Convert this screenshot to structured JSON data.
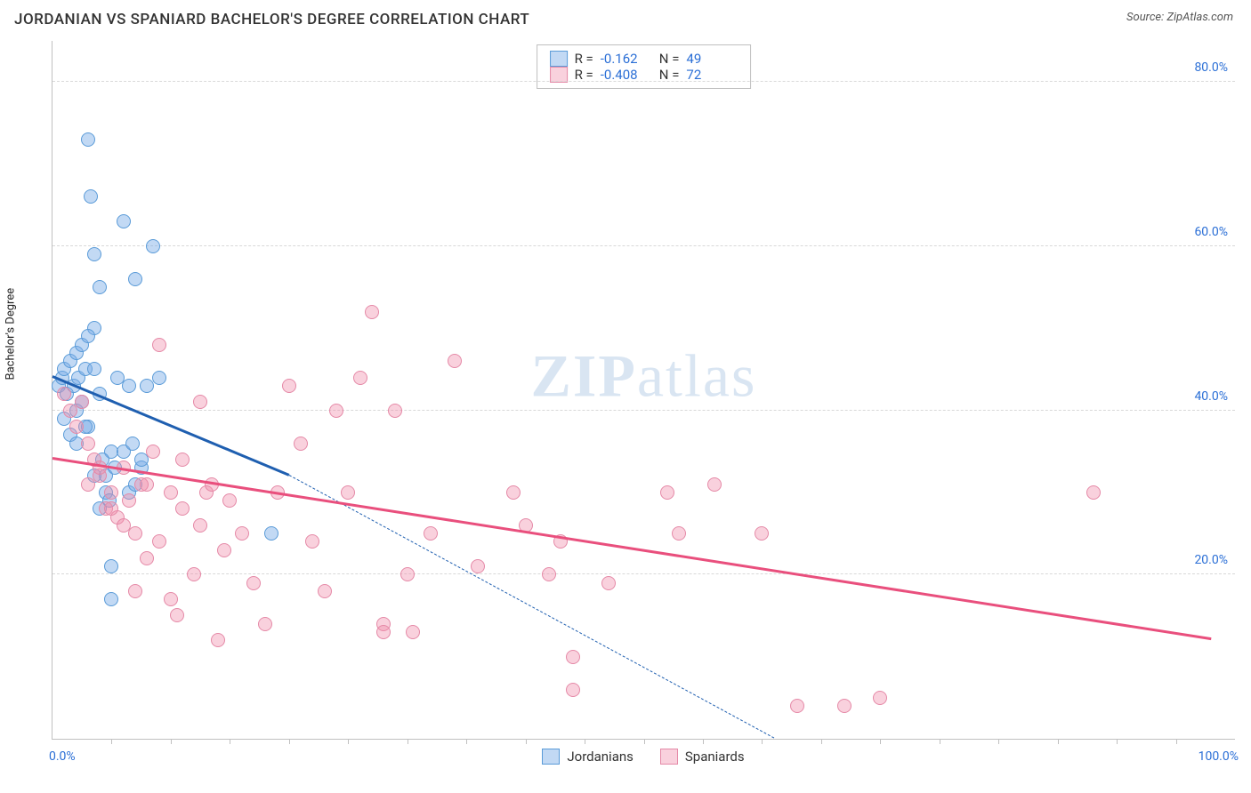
{
  "title": "JORDANIAN VS SPANIARD BACHELOR'S DEGREE CORRELATION CHART",
  "source_label": "Source:",
  "source_value": "ZipAtlas.com",
  "y_axis_label": "Bachelor's Degree",
  "watermark_bold": "ZIP",
  "watermark_rest": "atlas",
  "chart": {
    "type": "scatter",
    "xlim": [
      0,
      100
    ],
    "ylim": [
      0,
      85
    ],
    "x_tick_left": "0.0%",
    "x_tick_right": "100.0%",
    "y_ticks": [
      {
        "v": 20,
        "label": "20.0%"
      },
      {
        "v": 40,
        "label": "40.0%"
      },
      {
        "v": 60,
        "label": "60.0%"
      },
      {
        "v": 80,
        "label": "80.0%"
      }
    ],
    "x_minor_ticks": [
      5,
      10,
      15,
      20,
      25,
      30,
      35,
      40,
      45,
      50,
      55,
      60,
      65,
      70,
      75,
      80,
      85,
      90,
      95
    ],
    "grid_color": "#d9d9d9",
    "axis_color": "#c0c0c0",
    "tick_label_color": "#2b6fd6",
    "background_color": "#ffffff",
    "marker_radius": 8,
    "series": [
      {
        "name": "Jordanians",
        "fill": "rgba(120,170,230,0.45)",
        "stroke": "#5a9bd8",
        "trend_color": "#1f5fb0",
        "trend_width": 3,
        "R": "-0.162",
        "N": "49",
        "points": [
          [
            0.5,
            43
          ],
          [
            0.8,
            44
          ],
          [
            1.0,
            45
          ],
          [
            1.2,
            42
          ],
          [
            1.5,
            46
          ],
          [
            1.8,
            43
          ],
          [
            2.0,
            40
          ],
          [
            2.2,
            44
          ],
          [
            2.5,
            41
          ],
          [
            2.8,
            45
          ],
          [
            3.0,
            38
          ],
          [
            3.0,
            73
          ],
          [
            3.2,
            66
          ],
          [
            3.5,
            59
          ],
          [
            3.5,
            50
          ],
          [
            4.0,
            55
          ],
          [
            4.0,
            28
          ],
          [
            4.5,
            30
          ],
          [
            4.5,
            32
          ],
          [
            5.0,
            35
          ],
          [
            5.0,
            17
          ],
          [
            5.0,
            21
          ],
          [
            5.5,
            44
          ],
          [
            6.0,
            63
          ],
          [
            6.5,
            43
          ],
          [
            6.5,
            30
          ],
          [
            7.0,
            56
          ],
          [
            7.0,
            31
          ],
          [
            7.5,
            33
          ],
          [
            8.0,
            43
          ],
          [
            8.5,
            60
          ],
          [
            9.0,
            44
          ],
          [
            3.5,
            32
          ],
          [
            4.2,
            34
          ],
          [
            4.8,
            29
          ],
          [
            5.3,
            33
          ],
          [
            6.0,
            35
          ],
          [
            6.8,
            36
          ],
          [
            7.5,
            34
          ],
          [
            2.0,
            47
          ],
          [
            2.5,
            48
          ],
          [
            3.0,
            49
          ],
          [
            1.0,
            39
          ],
          [
            1.5,
            37
          ],
          [
            2.0,
            36
          ],
          [
            2.8,
            38
          ],
          [
            18.5,
            25
          ],
          [
            3.5,
            45
          ],
          [
            4.0,
            42
          ]
        ],
        "trend_line": {
          "x1": 0,
          "y1": 44,
          "x2": 20,
          "y2": 32
        },
        "trend_ext": {
          "x1": 20,
          "y1": 32,
          "x2": 61,
          "y2": 0
        }
      },
      {
        "name": "Spaniards",
        "fill": "rgba(240,140,170,0.40)",
        "stroke": "#e589a7",
        "trend_color": "#e94f7d",
        "trend_width": 3,
        "R": "-0.408",
        "N": "72",
        "points": [
          [
            1.0,
            42
          ],
          [
            1.5,
            40
          ],
          [
            2.0,
            38
          ],
          [
            2.5,
            41
          ],
          [
            3.0,
            36
          ],
          [
            3.5,
            34
          ],
          [
            4.0,
            32
          ],
          [
            4.5,
            28
          ],
          [
            5.0,
            30
          ],
          [
            5.5,
            27
          ],
          [
            6.0,
            33
          ],
          [
            6.5,
            29
          ],
          [
            7.0,
            25
          ],
          [
            7.5,
            31
          ],
          [
            8.0,
            22
          ],
          [
            8.5,
            35
          ],
          [
            9.0,
            48
          ],
          [
            10.0,
            30
          ],
          [
            10.5,
            15
          ],
          [
            11.0,
            34
          ],
          [
            12.0,
            20
          ],
          [
            12.5,
            41
          ],
          [
            13.0,
            30
          ],
          [
            14.0,
            12
          ],
          [
            14.5,
            23
          ],
          [
            15.0,
            29
          ],
          [
            16.0,
            25
          ],
          [
            17.0,
            19
          ],
          [
            18.0,
            14
          ],
          [
            19.0,
            30
          ],
          [
            20.0,
            43
          ],
          [
            21.0,
            36
          ],
          [
            22.0,
            24
          ],
          [
            23.0,
            18
          ],
          [
            24.0,
            40
          ],
          [
            25.0,
            30
          ],
          [
            26.0,
            44
          ],
          [
            27.0,
            52
          ],
          [
            28.0,
            14
          ],
          [
            28.0,
            13
          ],
          [
            29.0,
            40
          ],
          [
            30.0,
            20
          ],
          [
            32.0,
            25
          ],
          [
            34.0,
            46
          ],
          [
            30.5,
            13
          ],
          [
            36.0,
            21
          ],
          [
            39.0,
            30
          ],
          [
            40.0,
            26
          ],
          [
            42.0,
            20
          ],
          [
            43.0,
            24
          ],
          [
            44.0,
            10
          ],
          [
            44.0,
            6
          ],
          [
            47.0,
            19
          ],
          [
            52.0,
            30
          ],
          [
            53.0,
            25
          ],
          [
            56.0,
            31
          ],
          [
            60.0,
            25
          ],
          [
            63.0,
            4
          ],
          [
            67.0,
            4
          ],
          [
            70.0,
            5
          ],
          [
            88.0,
            30
          ],
          [
            3.0,
            31
          ],
          [
            4.0,
            33
          ],
          [
            5.0,
            28
          ],
          [
            6.0,
            26
          ],
          [
            7.0,
            18
          ],
          [
            8.0,
            31
          ],
          [
            9.0,
            24
          ],
          [
            10.0,
            17
          ],
          [
            11.0,
            28
          ],
          [
            12.5,
            26
          ],
          [
            13.5,
            31
          ]
        ],
        "trend_line": {
          "x1": 0,
          "y1": 34,
          "x2": 98,
          "y2": 12
        }
      }
    ]
  },
  "legend": {
    "box_border": "#bfbfbf",
    "rows": [
      {
        "swatch_fill": "rgba(120,170,230,0.45)",
        "swatch_stroke": "#5a9bd8",
        "R_label": "R =",
        "R": "-0.162",
        "N_label": "N =",
        "N": "49"
      },
      {
        "swatch_fill": "rgba(240,140,170,0.40)",
        "swatch_stroke": "#e589a7",
        "R_label": "R =",
        "R": "-0.408",
        "N_label": "N =",
        "N": "72"
      }
    ]
  },
  "bottom_legend": [
    {
      "label": "Jordanians",
      "fill": "rgba(120,170,230,0.45)",
      "stroke": "#5a9bd8"
    },
    {
      "label": "Spaniards",
      "fill": "rgba(240,140,170,0.40)",
      "stroke": "#e589a7"
    }
  ]
}
